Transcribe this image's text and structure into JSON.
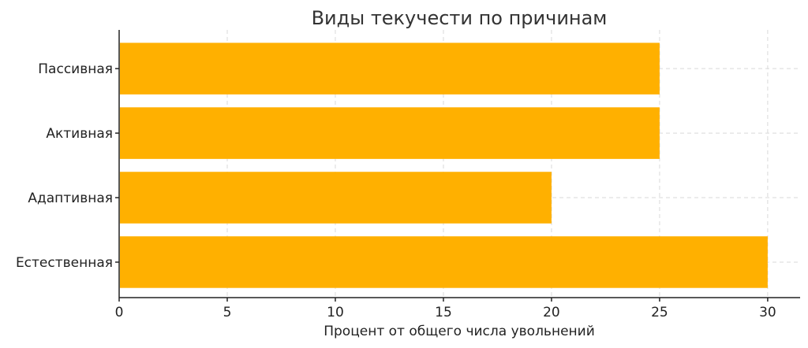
{
  "chart_data": {
    "type": "bar",
    "orientation": "horizontal",
    "title": "Виды текучести по причинам",
    "xlabel": "Процент от общего числа увольнений",
    "ylabel": "",
    "categories": [
      "Естественная",
      "Адаптивная",
      "Активная",
      "Пассивная"
    ],
    "values": [
      30,
      20,
      25,
      25
    ],
    "xlim": [
      0,
      31.5
    ],
    "xticks": [
      0,
      5,
      10,
      15,
      20,
      25,
      30
    ],
    "grid": true,
    "bar_color": "#FFB000"
  }
}
